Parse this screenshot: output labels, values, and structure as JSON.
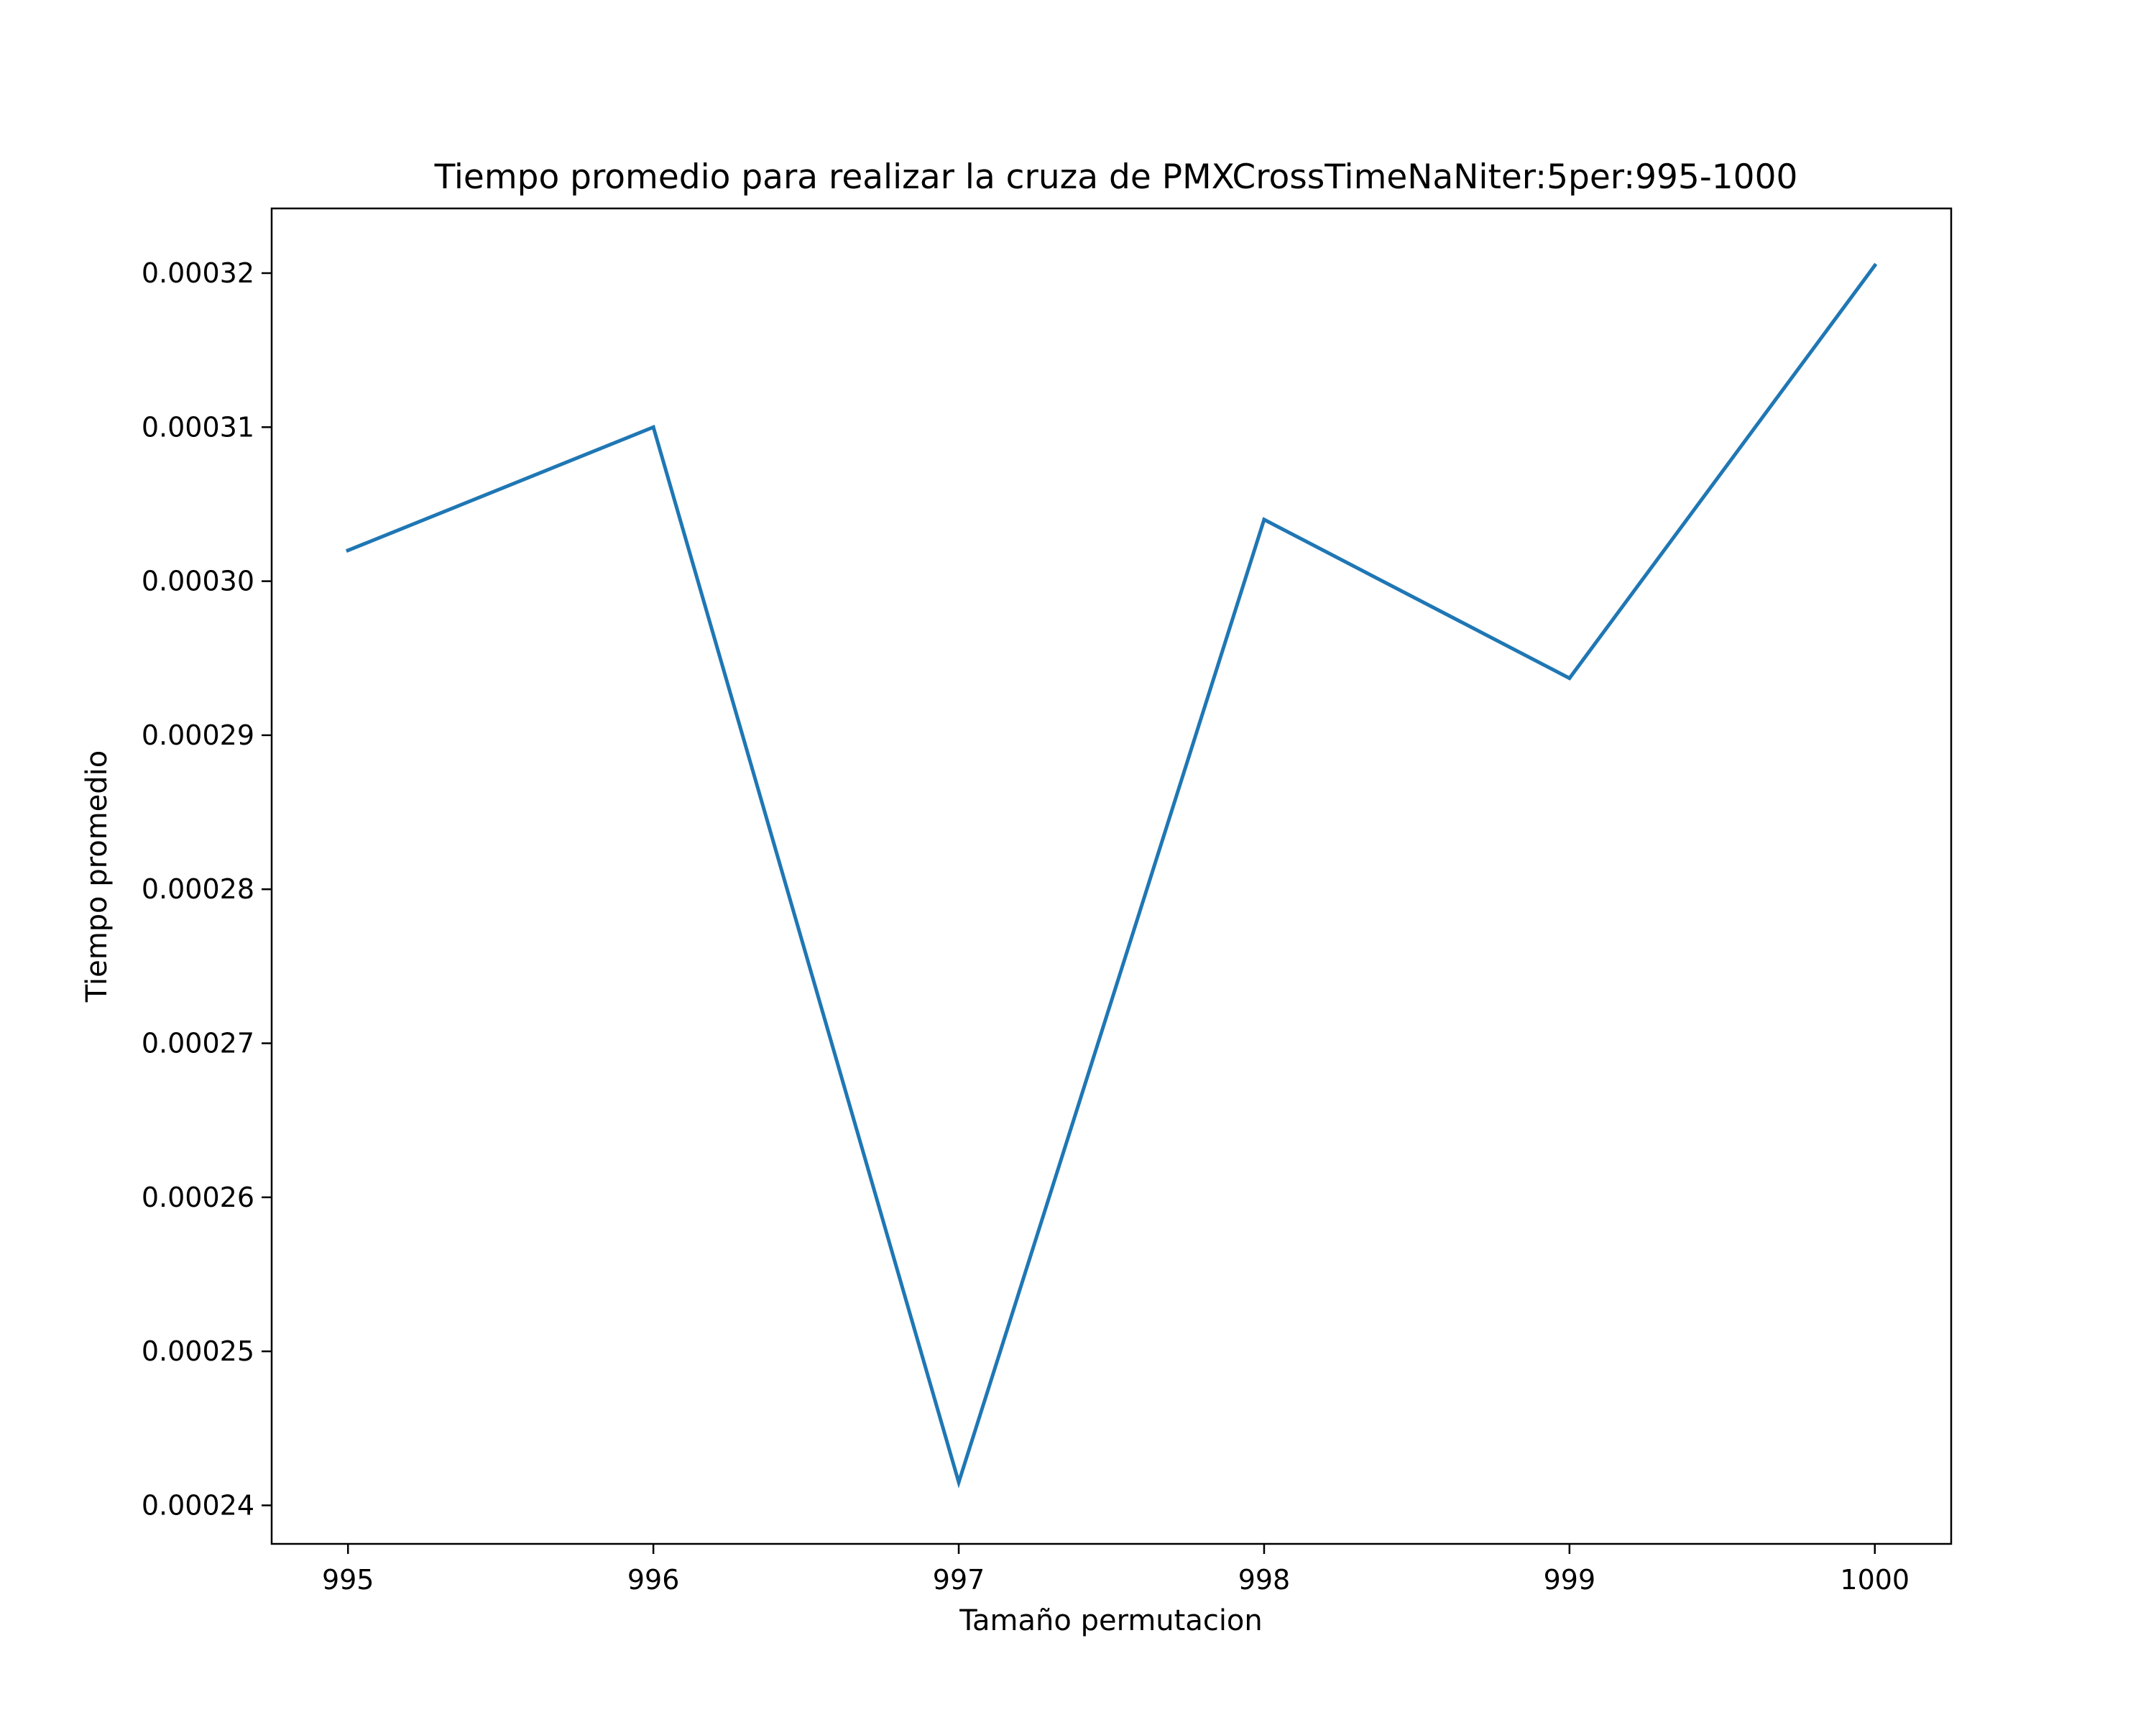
{
  "chart_data": {
    "type": "line",
    "title": "Tiempo promedio para realizar la cruza de PMXCrossTimeNaNiter:5per:995-1000",
    "xlabel": "Tamaño permutacion",
    "ylabel": "Tiempo promedio",
    "x": [
      995,
      996,
      997,
      998,
      999,
      1000
    ],
    "x_ticks": [
      "995",
      "996",
      "997",
      "998",
      "999",
      "1000"
    ],
    "y_ticks": [
      "0.00024",
      "0.00025",
      "0.00026",
      "0.00027",
      "0.00028",
      "0.00029",
      "0.00030",
      "0.00031",
      "0.00032"
    ],
    "y_tick_values": [
      0.00024,
      0.00025,
      0.00026,
      0.00027,
      0.00028,
      0.00029,
      0.0003,
      0.00031,
      0.00032
    ],
    "xlim": [
      994.75,
      1000.25
    ],
    "ylim": [
      0.0002375,
      0.0003242
    ],
    "grid": false,
    "series": [
      {
        "values": [
          0.000302,
          0.00031,
          0.0002415,
          0.000304,
          0.0002937,
          0.0003205
        ],
        "color": "#1f77b4"
      }
    ]
  }
}
